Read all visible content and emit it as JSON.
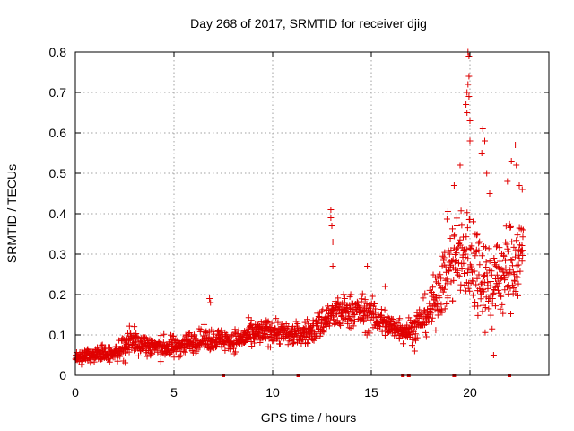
{
  "chart_data": {
    "type": "scatter",
    "title": "Day 268 of 2017, SRMTID for receiver djig",
    "xlabel": "GPS time / hours",
    "ylabel": "SRMTID / TECUs",
    "xlim": [
      0,
      24
    ],
    "ylim": [
      0,
      0.8
    ],
    "xticks": [
      0,
      5,
      10,
      15,
      20
    ],
    "yticks": [
      0,
      0.1,
      0.2,
      0.3,
      0.4,
      0.5,
      0.6,
      0.7,
      0.8
    ],
    "xtick_labels": [
      "0",
      "5",
      "10",
      "15",
      "20"
    ],
    "ytick_labels": [
      "0",
      "0.1",
      "0.2",
      "0.3",
      "0.4",
      "0.5",
      "0.6",
      "0.7",
      "0.8"
    ],
    "grid": true,
    "marker": "+",
    "color": "#e00000",
    "series": [
      {
        "name": "SRMTID",
        "trend": [
          {
            "x": 0.0,
            "mean": 0.04,
            "spread": 0.015
          },
          {
            "x": 1.0,
            "mean": 0.055,
            "spread": 0.02
          },
          {
            "x": 2.0,
            "mean": 0.05,
            "spread": 0.02
          },
          {
            "x": 2.8,
            "mean": 0.09,
            "spread": 0.035
          },
          {
            "x": 3.2,
            "mean": 0.08,
            "spread": 0.03
          },
          {
            "x": 4.0,
            "mean": 0.07,
            "spread": 0.025
          },
          {
            "x": 5.0,
            "mean": 0.07,
            "spread": 0.025
          },
          {
            "x": 6.0,
            "mean": 0.085,
            "spread": 0.025
          },
          {
            "x": 7.0,
            "mean": 0.09,
            "spread": 0.025
          },
          {
            "x": 8.0,
            "mean": 0.085,
            "spread": 0.025
          },
          {
            "x": 9.0,
            "mean": 0.1,
            "spread": 0.03
          },
          {
            "x": 10.0,
            "mean": 0.11,
            "spread": 0.03
          },
          {
            "x": 11.0,
            "mean": 0.1,
            "spread": 0.025
          },
          {
            "x": 12.0,
            "mean": 0.11,
            "spread": 0.03
          },
          {
            "x": 13.0,
            "mean": 0.15,
            "spread": 0.04
          },
          {
            "x": 14.0,
            "mean": 0.16,
            "spread": 0.04
          },
          {
            "x": 15.0,
            "mean": 0.15,
            "spread": 0.04
          },
          {
            "x": 16.0,
            "mean": 0.12,
            "spread": 0.03
          },
          {
            "x": 17.0,
            "mean": 0.11,
            "spread": 0.03
          },
          {
            "x": 18.0,
            "mean": 0.16,
            "spread": 0.05
          },
          {
            "x": 19.0,
            "mean": 0.28,
            "spread": 0.1
          },
          {
            "x": 20.0,
            "mean": 0.3,
            "spread": 0.12
          },
          {
            "x": 21.0,
            "mean": 0.22,
            "spread": 0.1
          },
          {
            "x": 22.0,
            "mean": 0.27,
            "spread": 0.1
          },
          {
            "x": 22.7,
            "mean": 0.3,
            "spread": 0.09
          }
        ],
        "peaks": [
          {
            "x": 6.8,
            "y": 0.19
          },
          {
            "x": 6.85,
            "y": 0.18
          },
          {
            "x": 12.95,
            "y": 0.41
          },
          {
            "x": 12.95,
            "y": 0.39
          },
          {
            "x": 13.0,
            "y": 0.37
          },
          {
            "x": 13.05,
            "y": 0.33
          },
          {
            "x": 13.05,
            "y": 0.27
          },
          {
            "x": 14.8,
            "y": 0.27
          },
          {
            "x": 15.7,
            "y": 0.22
          },
          {
            "x": 19.2,
            "y": 0.47
          },
          {
            "x": 19.5,
            "y": 0.52
          },
          {
            "x": 19.9,
            "y": 0.8
          },
          {
            "x": 19.95,
            "y": 0.79
          },
          {
            "x": 19.95,
            "y": 0.74
          },
          {
            "x": 19.9,
            "y": 0.72
          },
          {
            "x": 19.85,
            "y": 0.7
          },
          {
            "x": 19.95,
            "y": 0.69
          },
          {
            "x": 19.8,
            "y": 0.67
          },
          {
            "x": 19.85,
            "y": 0.65
          },
          {
            "x": 20.0,
            "y": 0.63
          },
          {
            "x": 20.0,
            "y": 0.58
          },
          {
            "x": 20.65,
            "y": 0.61
          },
          {
            "x": 20.75,
            "y": 0.58
          },
          {
            "x": 20.6,
            "y": 0.55
          },
          {
            "x": 20.85,
            "y": 0.5
          },
          {
            "x": 21.0,
            "y": 0.45
          },
          {
            "x": 22.3,
            "y": 0.57
          },
          {
            "x": 22.1,
            "y": 0.53
          },
          {
            "x": 22.35,
            "y": 0.52
          },
          {
            "x": 22.5,
            "y": 0.47
          },
          {
            "x": 22.65,
            "y": 0.46
          },
          {
            "x": 21.9,
            "y": 0.48
          },
          {
            "x": 22.7,
            "y": 0.36
          },
          {
            "x": 21.2,
            "y": 0.05
          },
          {
            "x": 17.2,
            "y": 0.06
          }
        ]
      }
    ],
    "axis_markers": {
      "y": 0,
      "x": [
        7.5,
        11.3,
        16.6,
        16.9,
        19.2,
        22.0
      ]
    }
  }
}
